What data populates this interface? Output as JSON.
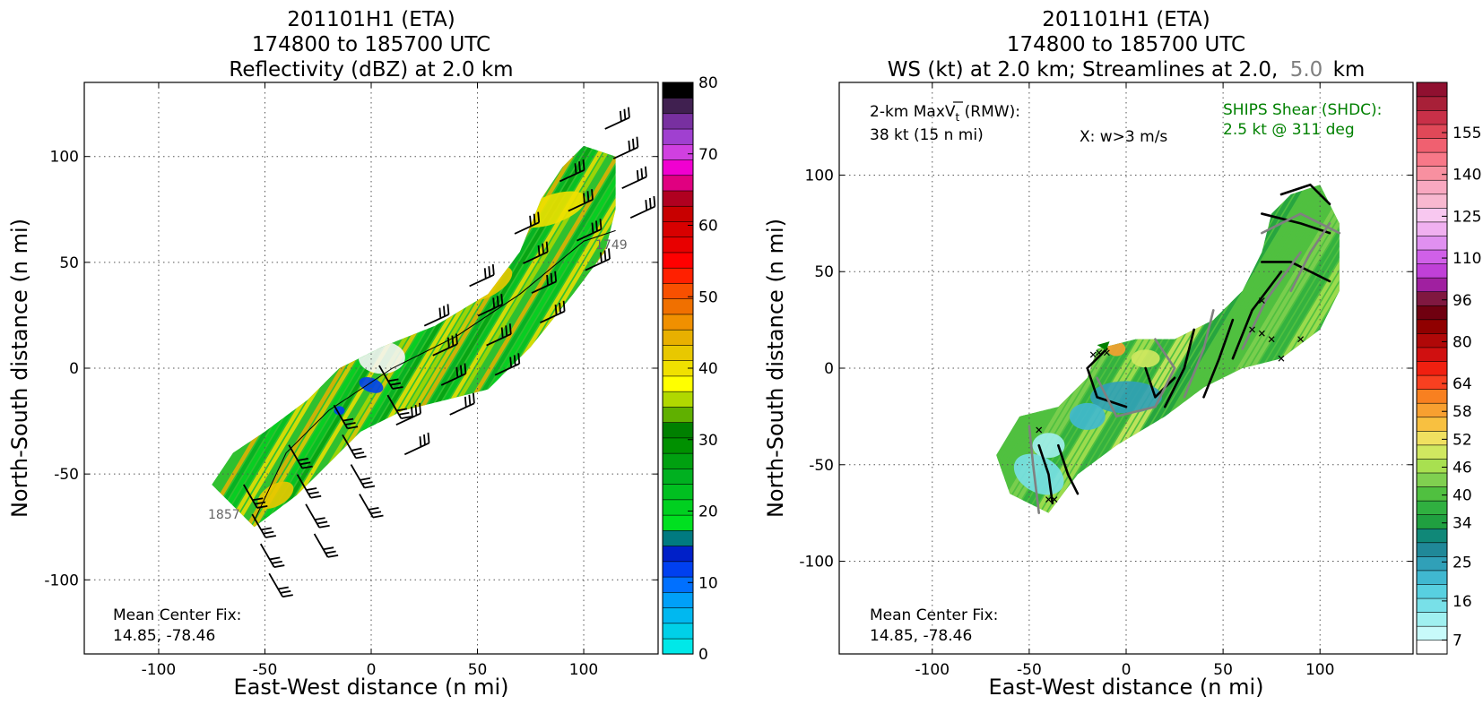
{
  "chart_data": [
    {
      "type": "heatmap",
      "title_lines": [
        "201101H1 (ETA)",
        "174800 to 185700 UTC",
        "Reflectivity (dBZ) at 2.0 km"
      ],
      "xlabel": "East-West distance (n mi)",
      "ylabel": "North-South distance (n mi)",
      "xlim": [
        -135,
        135
      ],
      "ylim": [
        -135,
        135
      ],
      "xticks": [
        -100,
        -50,
        0,
        50,
        100
      ],
      "yticks": [
        -100,
        -50,
        0,
        50,
        100
      ],
      "grid": true,
      "colorbar": {
        "min": 0,
        "max": 80,
        "ticks": [
          0,
          10,
          20,
          30,
          40,
          50,
          60,
          70,
          80
        ],
        "colors": [
          "#00e8e8",
          "#00d0e8",
          "#00b8f0",
          "#00a0f8",
          "#0070ff",
          "#0040f0",
          "#0020c8",
          "#007a80",
          "#00e020",
          "#00d020",
          "#00c020",
          "#00b020",
          "#00a010",
          "#009000",
          "#008000",
          "#60b000",
          "#b0d800",
          "#ffff00",
          "#f0e000",
          "#e8c800",
          "#e8b000",
          "#f09000",
          "#f07000",
          "#f85000",
          "#ff2000",
          "#ff0000",
          "#e80000",
          "#d80000",
          "#c80000",
          "#b00020",
          "#e00080",
          "#f000d0",
          "#d040e0",
          "#a040d0",
          "#7830a0",
          "#402050",
          "#000000"
        ]
      },
      "annotations": {
        "center_fix_label": "Mean Center Fix:",
        "center_fix_value": "14.85, -78.46",
        "track_start_label": "1857",
        "track_end_label": "1749"
      },
      "swath": [
        [
          -75,
          -55
        ],
        [
          -65,
          -40
        ],
        [
          -50,
          -30
        ],
        [
          -30,
          -15
        ],
        [
          -15,
          0
        ],
        [
          5,
          10
        ],
        [
          30,
          20
        ],
        [
          55,
          35
        ],
        [
          70,
          55
        ],
        [
          80,
          80
        ],
        [
          90,
          95
        ],
        [
          100,
          105
        ],
        [
          115,
          100
        ],
        [
          115,
          75
        ],
        [
          110,
          55
        ],
        [
          95,
          35
        ],
        [
          75,
          10
        ],
        [
          55,
          -10
        ],
        [
          35,
          -15
        ],
        [
          15,
          -20
        ],
        [
          -5,
          -30
        ],
        [
          -20,
          -45
        ],
        [
          -35,
          -60
        ],
        [
          -55,
          -75
        ]
      ]
    },
    {
      "type": "heatmap",
      "title_lines": [
        "201101H1 (ETA)",
        "174800 to 185700 UTC"
      ],
      "title_line3_parts": [
        "WS (kt) at 2.0 km; Streamlines at 2.0,",
        "5.0",
        "km"
      ],
      "xlabel": "East-West distance (n mi)",
      "ylabel": "North-South distance (n mi)",
      "xlim": [
        -148,
        148
      ],
      "ylim": [
        -148,
        148
      ],
      "xticks": [
        -100,
        -50,
        0,
        50,
        100
      ],
      "yticks": [
        -100,
        -50,
        0,
        50,
        100
      ],
      "grid": true,
      "colorbar": {
        "ticks": [
          7,
          16,
          25,
          34,
          40,
          46,
          52,
          58,
          64,
          80,
          96,
          110,
          125,
          140,
          155
        ],
        "colors": [
          "#ffffff",
          "#c8fafa",
          "#a0f0f0",
          "#78e0e8",
          "#58d0e0",
          "#40b8d0",
          "#30a0b8",
          "#208898",
          "#108878",
          "#20a040",
          "#30b040",
          "#50c040",
          "#80d050",
          "#a8e050",
          "#d0e860",
          "#f0e060",
          "#f8c040",
          "#f8a030",
          "#f88020",
          "#f84020",
          "#f02010",
          "#d01010",
          "#b00808",
          "#900000",
          "#700010",
          "#801840",
          "#a020a0",
          "#c040d8",
          "#d060e8",
          "#e090f0",
          "#f0b0f0",
          "#f8c8f0",
          "#f8b8d0",
          "#f8a8c0",
          "#f890a0",
          "#f87888",
          "#f06070",
          "#e04858",
          "#c83048",
          "#a82038",
          "#901030"
        ]
      },
      "annotations": {
        "max_vt_label": "2-km MaxV",
        "max_vt_sub": "t",
        "max_vt_suffix": " (RMW):",
        "max_vt_value": "38 kt (15 n mi)",
        "w_marker_note": "X: w>3 m/s",
        "shear_label": "SHIPS Shear (SHDC):",
        "shear_value": "2.5 kt @ 311 deg",
        "center_fix_label": "Mean Center Fix:",
        "center_fix_value": "14.85, -78.46"
      },
      "swath": [
        [
          -67,
          -45
        ],
        [
          -55,
          -25
        ],
        [
          -35,
          -20
        ],
        [
          -20,
          -5
        ],
        [
          -15,
          10
        ],
        [
          5,
          15
        ],
        [
          25,
          15
        ],
        [
          45,
          25
        ],
        [
          60,
          40
        ],
        [
          70,
          60
        ],
        [
          75,
          80
        ],
        [
          85,
          90
        ],
        [
          100,
          95
        ],
        [
          110,
          75
        ],
        [
          110,
          40
        ],
        [
          100,
          20
        ],
        [
          80,
          5
        ],
        [
          60,
          0
        ],
        [
          40,
          -10
        ],
        [
          20,
          -25
        ],
        [
          -5,
          -40
        ],
        [
          -25,
          -55
        ],
        [
          -40,
          -75
        ],
        [
          -60,
          -65
        ]
      ]
    }
  ]
}
